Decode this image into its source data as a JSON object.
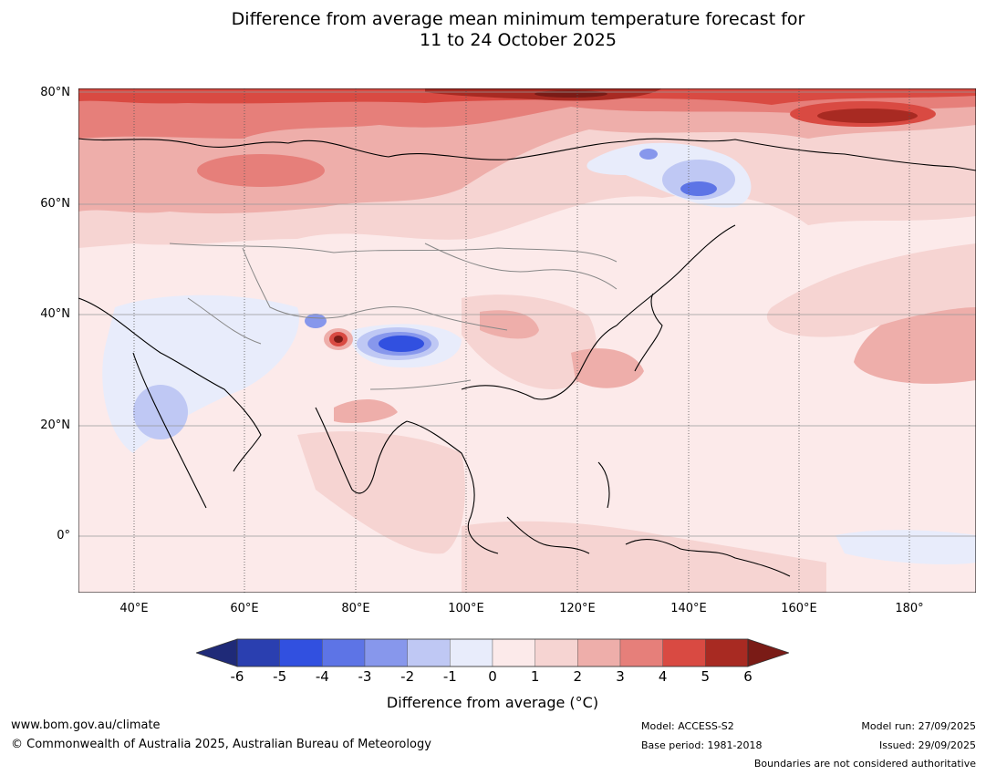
{
  "title": {
    "line1": "Difference from average mean minimum temperature forecast for",
    "line2": "11 to 24 October 2025"
  },
  "map": {
    "region": "Asia",
    "lat_labels": [
      "80°N",
      "60°N",
      "40°N",
      "20°N",
      "0°"
    ],
    "lon_labels": [
      "40°E",
      "60°E",
      "80°E",
      "100°E",
      "120°E",
      "140°E",
      "160°E",
      "180°"
    ],
    "features": {
      "arctic_warm_anomaly": "strong warm anomaly along northern coast",
      "siberia_cool_anomaly": "cool anomaly over eastern Siberia",
      "tibet_cool_anomaly": "strong cool anomaly over Tibetan Plateau",
      "karakoram_warm_spot": "small intense warm spot",
      "arabia_cool_anomaly": "cool anomaly over Arabian Peninsula"
    }
  },
  "colorbar": {
    "ticks": [
      "-6",
      "-5",
      "-4",
      "-3",
      "-2",
      "-1",
      "0",
      "1",
      "2",
      "3",
      "4",
      "5",
      "6"
    ],
    "colors": [
      "#1f2a78",
      "#2a3fb0",
      "#3150e0",
      "#5d74e6",
      "#8797ec",
      "#bfc8f4",
      "#e8ecfb",
      "#fceaea",
      "#f6d4d2",
      "#eeaeaa",
      "#e67f7a",
      "#d94a42",
      "#a82a22",
      "#7a1b16"
    ],
    "label": "Difference from average (°C)"
  },
  "footer": {
    "url": "www.bom.gov.au/climate",
    "copyright": "© Commonwealth of Australia 2025, Australian Bureau of Meteorology",
    "model": "Model: ACCESS-S2",
    "base_period": "Base period: 1981-2018",
    "model_run": "Model run: 27/09/2025",
    "issued": "Issued: 29/09/2025",
    "boundaries_note": "Boundaries are not considered authoritative"
  }
}
